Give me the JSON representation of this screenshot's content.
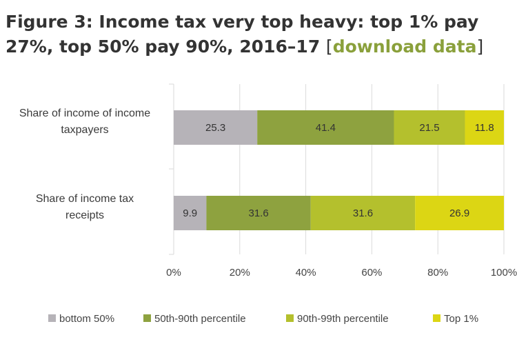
{
  "header": {
    "title_main": "Figure 3: Income tax very top heavy: top 1% pay 27%, top 50% pay 90%, 2016–17 ",
    "bracket_open": "[",
    "link_text": "download data",
    "bracket_close": "]"
  },
  "colors": {
    "bottom_50": "#b6b3b8",
    "p50_90": "#8ea23f",
    "p90_99": "#b4c02d",
    "top_1": "#dcd614",
    "link": "#8aa03b",
    "grid": "#dadada"
  },
  "chart_data": {
    "type": "bar",
    "orientation": "horizontal",
    "stacked": true,
    "categories": [
      [
        "Share of income of income",
        "taxpayers"
      ],
      [
        "Share of income tax",
        "receipts"
      ]
    ],
    "series": [
      {
        "name": "bottom 50%",
        "values": [
          25.3,
          9.9
        ]
      },
      {
        "name": "50th-90th percentile",
        "values": [
          41.4,
          31.6
        ]
      },
      {
        "name": "90th-99th percentile",
        "values": [
          21.5,
          31.6
        ]
      },
      {
        "name": "Top 1%",
        "values": [
          11.8,
          26.9
        ]
      }
    ],
    "xlim": [
      0,
      100
    ],
    "xticks": [
      "0%",
      "20%",
      "40%",
      "60%",
      "80%",
      "100%"
    ],
    "xtick_values": [
      0,
      20,
      40,
      60,
      80,
      100
    ],
    "grid": true,
    "legend_position": "bottom"
  }
}
